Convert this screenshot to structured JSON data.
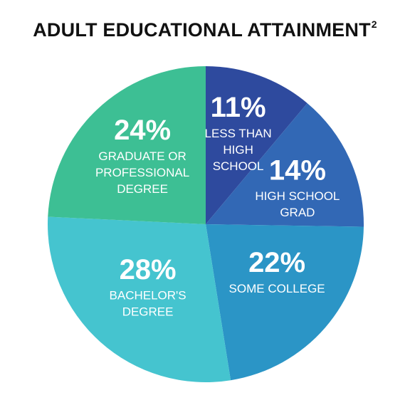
{
  "chart_data": {
    "type": "pie",
    "title": "ADULT EDUCATIONAL ATTAINMENT",
    "title_superscript": "2",
    "start_angle_deg": 0,
    "direction": "clockwise",
    "slices": [
      {
        "value": 11,
        "value_label": "11%",
        "label": "LESS THAN HIGH SCHOOL",
        "label_lines": [
          "LESS THAN",
          "HIGH",
          "SCHOOL"
        ],
        "color": "#2E4A9E"
      },
      {
        "value": 14,
        "value_label": "14%",
        "label": "HIGH SCHOOL GRAD",
        "label_lines": [
          "HIGH SCHOOL",
          "GRAD"
        ],
        "color": "#3268B5"
      },
      {
        "value": 22,
        "value_label": "22%",
        "label": "SOME COLLEGE",
        "label_lines": [
          "SOME COLLEGE"
        ],
        "color": "#2B95C6"
      },
      {
        "value": 28,
        "value_label": "28%",
        "label": "BACHELOR'S DEGREE",
        "label_lines": [
          "BACHELOR'S",
          "DEGREE"
        ],
        "color": "#45C4CF"
      },
      {
        "value": 24,
        "value_label": "24%",
        "label": "GRADUATE OR PROFESSIONAL DEGREE",
        "label_lines": [
          "GRADUATE OR",
          "PROFESSIONAL",
          "DEGREE"
        ],
        "color": "#3DBF94"
      }
    ]
  }
}
